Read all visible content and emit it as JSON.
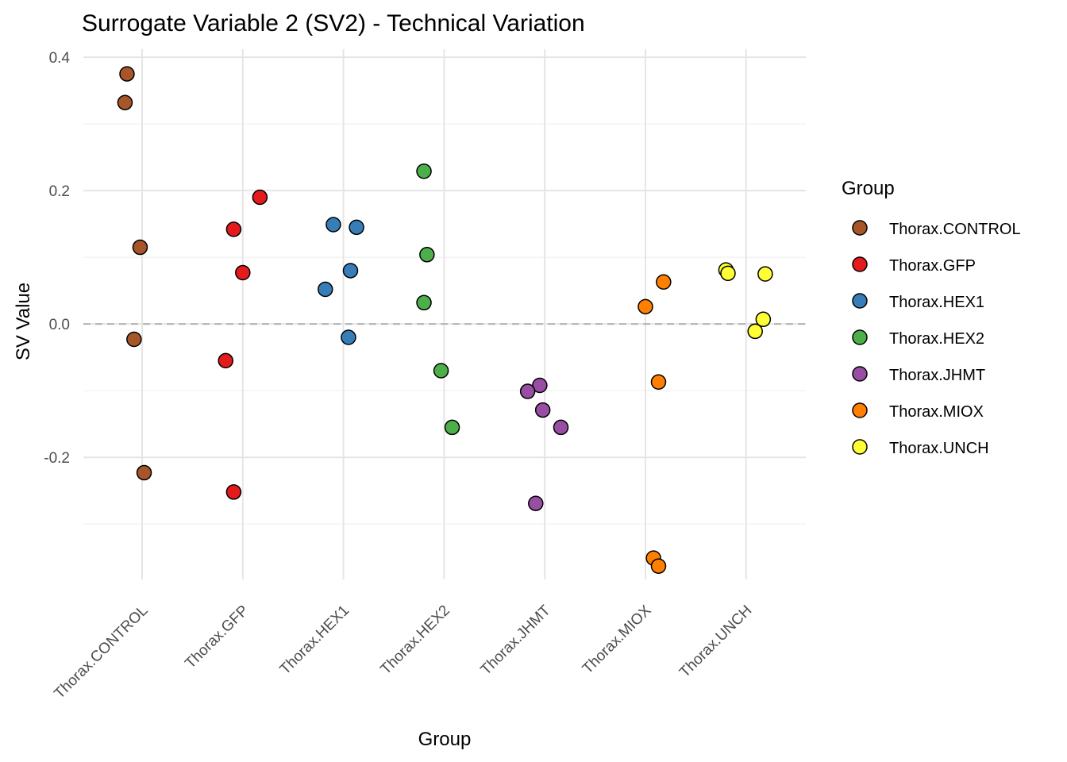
{
  "chart_data": {
    "type": "scatter",
    "title": "Surrogate Variable 2 (SV2) - Technical Variation",
    "xlabel": "Group",
    "ylabel": "SV Value",
    "ylim": [
      -0.383,
      0.412
    ],
    "yticks": [
      -0.2,
      0.0,
      0.2,
      0.4
    ],
    "ytick_labels": [
      "-0.2",
      "0.0",
      "0.2",
      "0.4"
    ],
    "yminor": [
      -0.3,
      -0.1,
      0.1,
      0.3
    ],
    "reference_line": 0,
    "grid": true,
    "categories": [
      "Thorax.CONTROL",
      "Thorax.GFP",
      "Thorax.HEX1",
      "Thorax.HEX2",
      "Thorax.JHMT",
      "Thorax.MIOX",
      "Thorax.UNCH"
    ],
    "legend": {
      "title": "Group",
      "placement": "right"
    },
    "series": [
      {
        "name": "Thorax.CONTROL",
        "color": "#A65628",
        "values": [
          0.375,
          0.332,
          0.115,
          -0.023,
          -0.223
        ],
        "jitter": [
          -0.15,
          -0.17,
          -0.02,
          -0.08,
          0.02
        ]
      },
      {
        "name": "Thorax.GFP",
        "color": "#E41A1C",
        "values": [
          0.19,
          0.142,
          0.077,
          -0.055,
          -0.252
        ],
        "jitter": [
          0.17,
          -0.09,
          0.0,
          -0.17,
          -0.09
        ]
      },
      {
        "name": "Thorax.HEX1",
        "color": "#377EB8",
        "values": [
          0.149,
          0.145,
          0.08,
          0.052,
          -0.02
        ],
        "jitter": [
          -0.1,
          0.13,
          0.07,
          -0.18,
          0.05
        ]
      },
      {
        "name": "Thorax.HEX2",
        "color": "#4DAF4A",
        "values": [
          0.229,
          0.104,
          0.032,
          -0.07,
          -0.155
        ],
        "jitter": [
          -0.2,
          -0.17,
          -0.2,
          -0.03,
          0.08
        ]
      },
      {
        "name": "Thorax.JHMT",
        "color": "#984EA3",
        "values": [
          -0.092,
          -0.101,
          -0.129,
          -0.155,
          -0.269
        ],
        "jitter": [
          -0.05,
          -0.17,
          -0.02,
          0.16,
          -0.09
        ]
      },
      {
        "name": "Thorax.MIOX",
        "color": "#FF7F00",
        "values": [
          0.063,
          0.026,
          -0.087,
          -0.351,
          -0.363
        ],
        "jitter": [
          0.18,
          0.0,
          0.13,
          0.08,
          0.13
        ]
      },
      {
        "name": "Thorax.UNCH",
        "color": "#FFFF33",
        "values": [
          0.081,
          0.076,
          0.075,
          0.007,
          -0.011
        ],
        "jitter": [
          -0.2,
          -0.18,
          0.19,
          0.17,
          0.09
        ]
      }
    ]
  }
}
